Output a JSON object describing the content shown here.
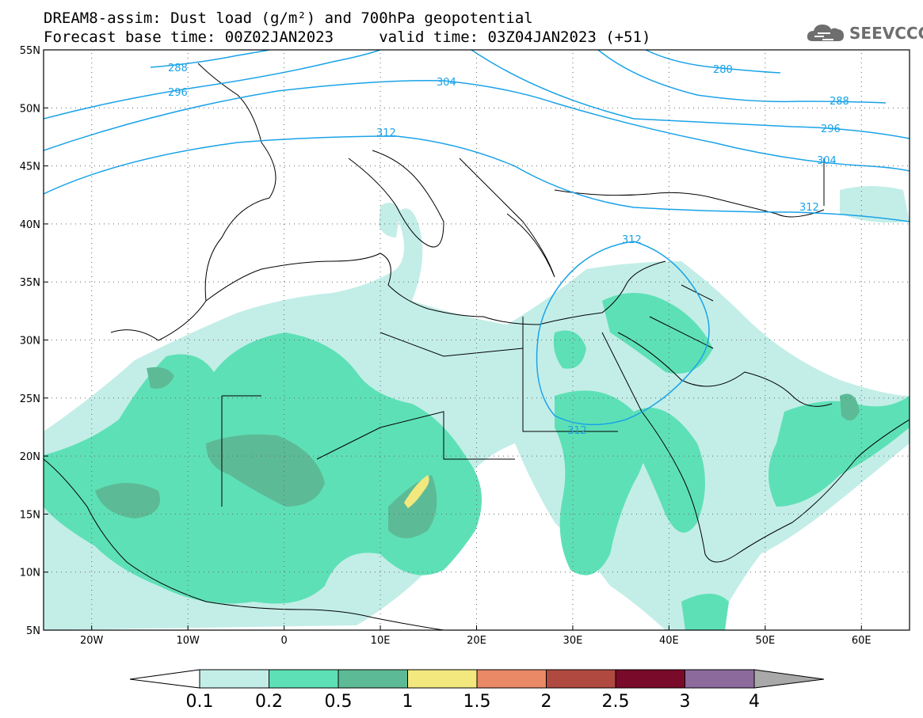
{
  "header": {
    "title_line1": "DREAM8-assim: Dust load (g/m²) and 700hPa geopotential",
    "title_line2": "Forecast base time: 00Z02JAN2023     valid time: 03Z04JAN2023 (+51)",
    "logo_text": "SEEVCCC",
    "logo_icon": "cloud-icon"
  },
  "map": {
    "lat_labels": [
      "55N",
      "50N",
      "45N",
      "40N",
      "35N",
      "30N",
      "25N",
      "20N",
      "15N",
      "10N",
      "5N"
    ],
    "lat_values": [
      55,
      50,
      45,
      40,
      35,
      30,
      25,
      20,
      15,
      10,
      5
    ],
    "lon_labels": [
      "20W",
      "10W",
      "0",
      "10E",
      "20E",
      "30E",
      "40E",
      "50E",
      "60E"
    ],
    "lon_values": [
      -20,
      -10,
      0,
      10,
      20,
      30,
      40,
      50,
      60
    ],
    "lon_range": [
      -25,
      65
    ],
    "lat_range": [
      5,
      55
    ],
    "geopotential_contours": [
      "288",
      "296",
      "304",
      "312",
      "280",
      "288",
      "296",
      "304",
      "312",
      "312",
      "312"
    ],
    "colors": {
      "contour": "#1aa3e8",
      "level_0_1": "#c3eee8",
      "level_0_2": "#5ee0b6",
      "level_0_5": "#5cbb96",
      "level_1": "#f2e87e",
      "coast": "#000000"
    }
  },
  "colorbar": {
    "labels": [
      "0.1",
      "0.2",
      "0.5",
      "1",
      "1.5",
      "2",
      "2.5",
      "3",
      "4"
    ],
    "colors": [
      "#c3eee8",
      "#5ee0b6",
      "#5cbb96",
      "#f2e87e",
      "#e98966",
      "#b0493f",
      "#7a0a2a",
      "#8c6a9c"
    ],
    "under_color": "#ffffff",
    "over_color": "#a9a9a9"
  }
}
